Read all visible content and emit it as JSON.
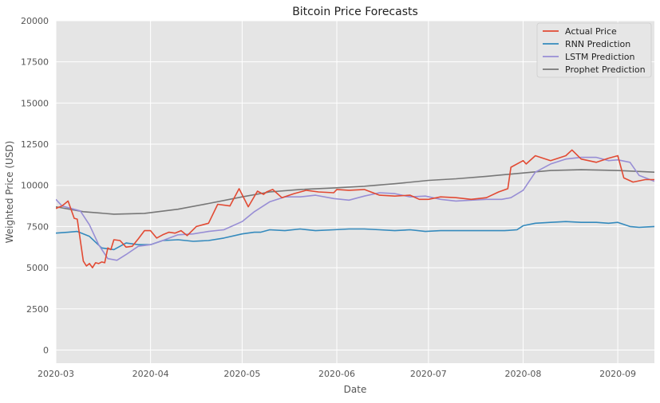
{
  "chart_data": {
    "type": "line",
    "title": "Bitcoin Price Forecasts",
    "xlabel": "Date",
    "ylabel": "Weighted Price (USD)",
    "xlim": [
      "2020-03-01",
      "2020-09-13"
    ],
    "ylim": [
      -800,
      20000
    ],
    "grid": true,
    "legend_position": "top-right",
    "x_ticks": [
      "2020-03-01",
      "2020-04-01",
      "2020-05-01",
      "2020-06-01",
      "2020-07-01",
      "2020-08-01",
      "2020-09-01"
    ],
    "x_tick_labels": [
      "2020-03",
      "2020-04",
      "2020-05",
      "2020-06",
      "2020-07",
      "2020-08",
      "2020-09"
    ],
    "y_ticks": [
      0,
      2500,
      5000,
      7500,
      10000,
      12500,
      15000,
      17500,
      20000
    ],
    "y_tick_labels": [
      "0",
      "2500",
      "5000",
      "7500",
      "10000",
      "12500",
      "15000",
      "17500",
      "20000"
    ],
    "colors": {
      "plot_bg": "#e5e5e5",
      "grid": "#ffffff",
      "text": "#555555",
      "title": "#222222"
    },
    "series": [
      {
        "name": "Actual Price",
        "color": "#e24a33",
        "x": [
          "2020-03-01",
          "2020-03-03",
          "2020-03-05",
          "2020-03-07",
          "2020-03-08",
          "2020-03-10",
          "2020-03-11",
          "2020-03-12",
          "2020-03-13",
          "2020-03-14",
          "2020-03-15",
          "2020-03-16",
          "2020-03-17",
          "2020-03-18",
          "2020-03-19",
          "2020-03-20",
          "2020-03-22",
          "2020-03-24",
          "2020-03-26",
          "2020-03-28",
          "2020-03-30",
          "2020-04-01",
          "2020-04-03",
          "2020-04-05",
          "2020-04-07",
          "2020-04-09",
          "2020-04-11",
          "2020-04-13",
          "2020-04-16",
          "2020-04-20",
          "2020-04-23",
          "2020-04-27",
          "2020-04-30",
          "2020-05-03",
          "2020-05-06",
          "2020-05-08",
          "2020-05-09",
          "2020-05-11",
          "2020-05-14",
          "2020-05-18",
          "2020-05-22",
          "2020-05-26",
          "2020-05-31",
          "2020-06-01",
          "2020-06-05",
          "2020-06-10",
          "2020-06-15",
          "2020-06-20",
          "2020-06-25",
          "2020-06-28",
          "2020-07-01",
          "2020-07-05",
          "2020-07-10",
          "2020-07-15",
          "2020-07-20",
          "2020-07-24",
          "2020-07-27",
          "2020-07-28",
          "2020-08-01",
          "2020-08-02",
          "2020-08-05",
          "2020-08-10",
          "2020-08-15",
          "2020-08-17",
          "2020-08-20",
          "2020-08-25",
          "2020-08-29",
          "2020-09-01",
          "2020-09-03",
          "2020-09-06",
          "2020-09-10",
          "2020-09-13"
        ],
        "y": [
          8600,
          8750,
          9050,
          8000,
          7950,
          5400,
          5100,
          5250,
          5000,
          5300,
          5250,
          5350,
          5300,
          6200,
          6100,
          6700,
          6650,
          6250,
          6300,
          6750,
          7250,
          7250,
          6800,
          7000,
          7150,
          7100,
          7250,
          6950,
          7500,
          7700,
          8850,
          8750,
          9800,
          8700,
          9650,
          9450,
          9600,
          9750,
          9250,
          9500,
          9700,
          9600,
          9550,
          9750,
          9700,
          9750,
          9400,
          9350,
          9400,
          9150,
          9150,
          9300,
          9250,
          9150,
          9250,
          9600,
          9800,
          11100,
          11500,
          11300,
          11800,
          11500,
          11800,
          12150,
          11600,
          11400,
          11650,
          11800,
          10450,
          10200,
          10350,
          10350
        ]
      },
      {
        "name": "RNN Prediction",
        "color": "#348abd",
        "x": [
          "2020-03-01",
          "2020-03-05",
          "2020-03-08",
          "2020-03-12",
          "2020-03-16",
          "2020-03-20",
          "2020-03-24",
          "2020-03-28",
          "2020-04-01",
          "2020-04-05",
          "2020-04-10",
          "2020-04-15",
          "2020-04-20",
          "2020-04-25",
          "2020-05-01",
          "2020-05-05",
          "2020-05-07",
          "2020-05-10",
          "2020-05-15",
          "2020-05-20",
          "2020-05-25",
          "2020-05-31",
          "2020-06-05",
          "2020-06-10",
          "2020-06-15",
          "2020-06-20",
          "2020-06-25",
          "2020-06-30",
          "2020-07-05",
          "2020-07-10",
          "2020-07-15",
          "2020-07-20",
          "2020-07-26",
          "2020-07-30",
          "2020-08-01",
          "2020-08-05",
          "2020-08-10",
          "2020-08-15",
          "2020-08-20",
          "2020-08-25",
          "2020-08-29",
          "2020-09-01",
          "2020-09-05",
          "2020-09-08",
          "2020-09-13"
        ],
        "y": [
          7100,
          7150,
          7200,
          6900,
          6200,
          6100,
          6500,
          6400,
          6400,
          6650,
          6700,
          6600,
          6650,
          6800,
          7050,
          7150,
          7150,
          7300,
          7250,
          7350,
          7250,
          7300,
          7350,
          7350,
          7300,
          7250,
          7300,
          7200,
          7250,
          7250,
          7250,
          7250,
          7250,
          7300,
          7550,
          7700,
          7750,
          7800,
          7750,
          7750,
          7700,
          7750,
          7500,
          7450,
          7500
        ]
      },
      {
        "name": "LSTM Prediction",
        "color": "#988ed5",
        "x": [
          "2020-03-01",
          "2020-03-03",
          "2020-03-06",
          "2020-03-09",
          "2020-03-12",
          "2020-03-15",
          "2020-03-18",
          "2020-03-21",
          "2020-03-24",
          "2020-03-28",
          "2020-04-01",
          "2020-04-05",
          "2020-04-10",
          "2020-04-15",
          "2020-04-20",
          "2020-04-25",
          "2020-05-01",
          "2020-05-05",
          "2020-05-10",
          "2020-05-15",
          "2020-05-20",
          "2020-05-25",
          "2020-05-31",
          "2020-06-05",
          "2020-06-10",
          "2020-06-15",
          "2020-06-20",
          "2020-06-25",
          "2020-06-30",
          "2020-07-05",
          "2020-07-10",
          "2020-07-15",
          "2020-07-20",
          "2020-07-25",
          "2020-07-28",
          "2020-08-01",
          "2020-08-05",
          "2020-08-10",
          "2020-08-15",
          "2020-08-20",
          "2020-08-25",
          "2020-08-29",
          "2020-09-01",
          "2020-09-05",
          "2020-09-08",
          "2020-09-13"
        ],
        "y": [
          9150,
          8750,
          8600,
          8450,
          7600,
          6400,
          5550,
          5450,
          5800,
          6300,
          6400,
          6650,
          7000,
          7050,
          7200,
          7300,
          7800,
          8400,
          9000,
          9300,
          9300,
          9400,
          9200,
          9100,
          9350,
          9550,
          9500,
          9300,
          9350,
          9150,
          9050,
          9100,
          9150,
          9150,
          9250,
          9700,
          10800,
          11300,
          11600,
          11700,
          11700,
          11500,
          11550,
          11400,
          10600,
          10250
        ]
      },
      {
        "name": "Prophet Prediction",
        "color": "#777777",
        "x": [
          "2020-03-01",
          "2020-03-10",
          "2020-03-20",
          "2020-03-30",
          "2020-04-10",
          "2020-04-20",
          "2020-05-01",
          "2020-05-10",
          "2020-05-20",
          "2020-06-01",
          "2020-06-10",
          "2020-06-20",
          "2020-07-01",
          "2020-07-10",
          "2020-07-20",
          "2020-08-01",
          "2020-08-10",
          "2020-08-20",
          "2020-09-01",
          "2020-09-13"
        ],
        "y": [
          8700,
          8400,
          8250,
          8300,
          8550,
          8900,
          9300,
          9600,
          9750,
          9850,
          9950,
          10100,
          10300,
          10400,
          10550,
          10750,
          10900,
          10950,
          10900,
          10800
        ]
      }
    ]
  }
}
